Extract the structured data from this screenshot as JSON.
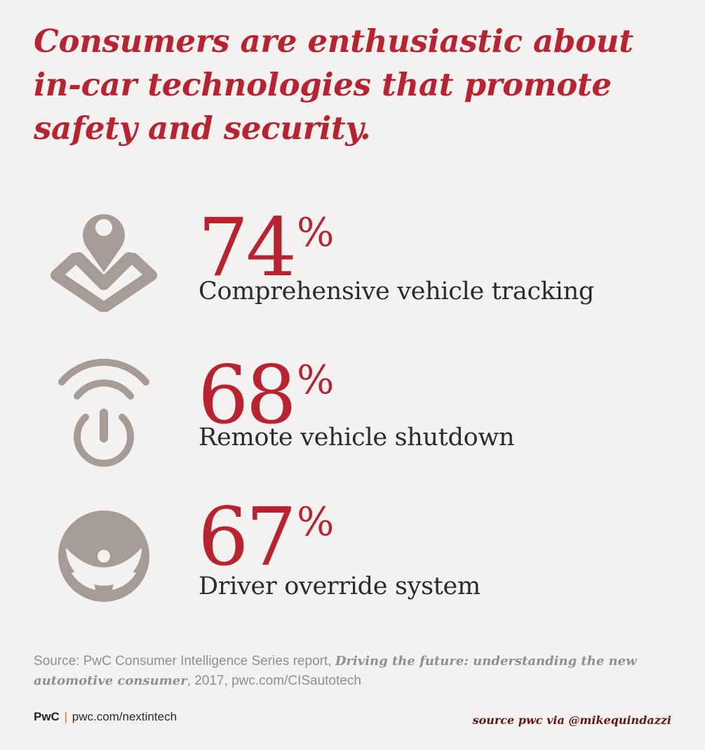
{
  "headline": "Consumers are enthusiastic about in-car technologies that promote safety and security.",
  "stats": [
    {
      "icon": "location-pin-icon",
      "value": "74",
      "unit": "%",
      "label": "Comprehensive vehicle tracking"
    },
    {
      "icon": "remote-power-icon",
      "value": "68",
      "unit": "%",
      "label": "Remote vehicle shutdown"
    },
    {
      "icon": "steering-wheel-icon",
      "value": "67",
      "unit": "%",
      "label": "Driver override system"
    }
  ],
  "source": {
    "prefix": "Source: PwC Consumer Intelligence Series report, ",
    "report_title": "Driving the future: understanding the new automotive consumer",
    "suffix": ", 2017, pwc.com/CISautotech"
  },
  "footer": {
    "brand": "PwC",
    "separator": "|",
    "url": "pwc.com/nextintech",
    "credit": "source pwc via @mikequindazzi"
  },
  "colors": {
    "accent_red": "#b8232f",
    "icon_taupe": "#a69b95",
    "background": "#f4f2f0",
    "separator_orange": "#d26d2d",
    "credit_maroon": "#6b1414"
  }
}
